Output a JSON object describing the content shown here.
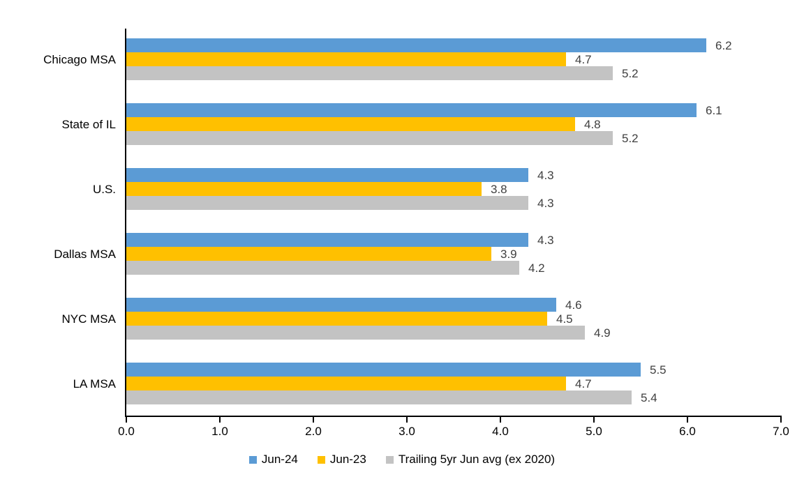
{
  "chart_data": {
    "type": "bar",
    "orientation": "horizontal",
    "title": "",
    "xlabel": "",
    "ylabel": "",
    "categories": [
      "Chicago MSA",
      "State of IL",
      "U.S.",
      "Dallas MSA",
      "NYC MSA",
      "LA MSA"
    ],
    "series": [
      {
        "name": "Jun-24",
        "color": "#5B9BD5",
        "values": [
          6.2,
          6.1,
          4.3,
          4.3,
          4.6,
          5.5
        ]
      },
      {
        "name": "Jun-23",
        "color": "#FFC000",
        "values": [
          4.7,
          4.8,
          3.8,
          3.9,
          4.5,
          4.7
        ]
      },
      {
        "name": "Trailing 5yr Jun avg (ex 2020)",
        "color": "#C3C3C3",
        "values": [
          5.2,
          5.2,
          4.3,
          4.2,
          4.9,
          5.4
        ]
      }
    ],
    "xlim": [
      0.0,
      7.0
    ],
    "xtick_labels": [
      "0.0",
      "1.0",
      "2.0",
      "3.0",
      "4.0",
      "5.0",
      "6.0",
      "7.0"
    ],
    "grid": false,
    "legend_position": "bottom",
    "value_labels_shown": true,
    "value_label_color": "#404040",
    "axis_color": "#000000",
    "background_color": "#FFFFFF"
  }
}
